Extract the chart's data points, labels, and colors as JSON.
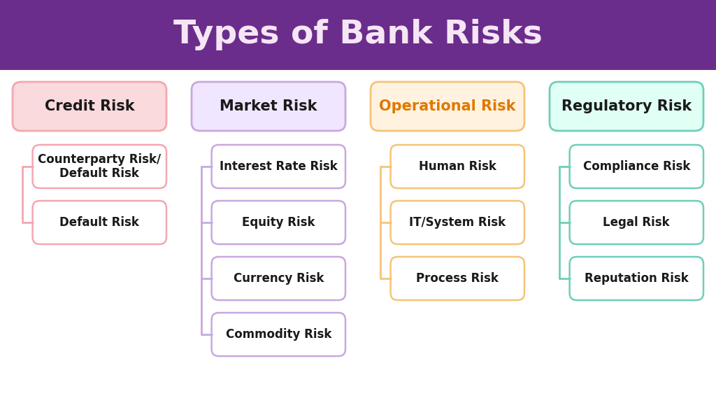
{
  "title": "Types of Bank Risks",
  "title_bg_color": "#6B2D8B",
  "title_text_color": "#F5E6F5",
  "bg_color": "#FFFFFF",
  "columns": [
    {
      "header": "Credit Risk",
      "header_bg": "#FADADD",
      "header_border": "#F4A7B0",
      "header_text_color": "#1a1a1a",
      "items": [
        "Counterparty Risk/\nDefault Risk",
        "Default Risk"
      ],
      "item_bg": "#FFFFFF",
      "item_border": "#F4A7B0",
      "connector_color": "#F4A7B0"
    },
    {
      "header": "Market Risk",
      "header_bg": "#F0E6FF",
      "header_border": "#C8A8E0",
      "header_text_color": "#1a1a1a",
      "items": [
        "Interest Rate Risk",
        "Equity Risk",
        "Currency Risk",
        "Commodity Risk"
      ],
      "item_bg": "#FFFFFF",
      "item_border": "#C8A8E0",
      "connector_color": "#C8A8E0"
    },
    {
      "header": "Operational Risk",
      "header_bg": "#FFF3E0",
      "header_border": "#F5C478",
      "header_text_color": "#E07800",
      "items": [
        "Human Risk",
        "IT/System Risk",
        "Process Risk"
      ],
      "item_bg": "#FFFFFF",
      "item_border": "#F5C478",
      "connector_color": "#F5C478"
    },
    {
      "header": "Regulatory Risk",
      "header_bg": "#E0FFF5",
      "header_border": "#70CEB8",
      "header_text_color": "#1a1a1a",
      "items": [
        "Compliance Risk",
        "Legal Risk",
        "Reputation Risk"
      ],
      "item_bg": "#FFFFFF",
      "item_border": "#70CEB8",
      "connector_color": "#70CEB8"
    }
  ],
  "header_fontsize": 15,
  "item_fontsize": 12,
  "title_fontsize": 34
}
